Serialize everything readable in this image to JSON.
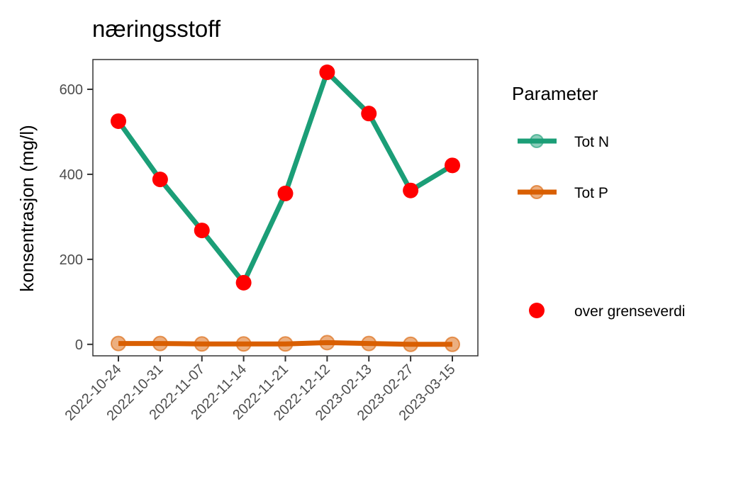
{
  "chart_data": {
    "type": "line",
    "title": "næringsstoff",
    "xlabel": "",
    "ylabel": "konsentrasjon (mg/l)",
    "categories": [
      "2022-10-24",
      "2022-10-31",
      "2022-11-07",
      "2022-11-14",
      "2022-11-21",
      "2022-12-12",
      "2023-02-13",
      "2023-02-27",
      "2023-03-15"
    ],
    "ylim": [
      -27,
      670
    ],
    "yticks": [
      0,
      200,
      400,
      600
    ],
    "grid": false,
    "legend_position": "right",
    "series": [
      {
        "name": "Tot N",
        "color": "#1b9e77",
        "values": [
          525,
          388,
          268,
          145,
          355,
          640,
          543,
          362,
          421
        ]
      },
      {
        "name": "Tot P",
        "color": "#d95f02",
        "values": [
          2,
          2,
          1,
          1,
          1,
          4,
          2,
          0,
          0
        ]
      }
    ],
    "highlight": {
      "name": "over grenseverdi",
      "color": "#ff0000",
      "series": "Tot N"
    },
    "legend": {
      "title": "Parameter"
    }
  }
}
